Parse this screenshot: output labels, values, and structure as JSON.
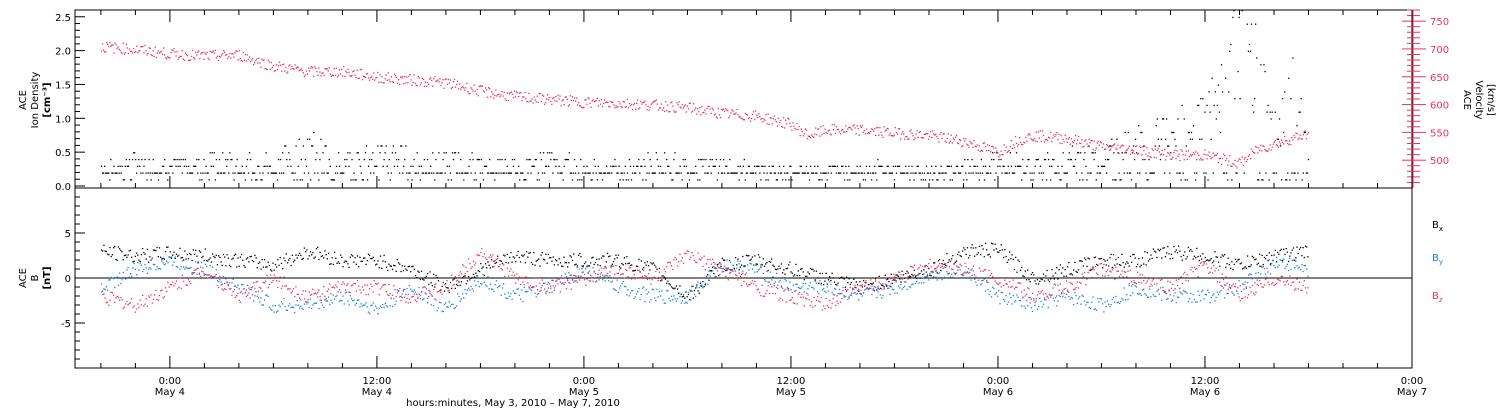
{
  "chart_data": [
    {
      "type": "scatter",
      "panel": "top",
      "ylabel_left": [
        "ACE",
        "Ion Density",
        "[cm⁻³]"
      ],
      "ylabel_right": [
        "ACE",
        "Velocity",
        "[km/s]"
      ],
      "ylim_left": [
        0,
        2.6
      ],
      "ylim_right": [
        450,
        770
      ],
      "yticks_left": [
        "0.0",
        "0.5",
        "1.0",
        "1.5",
        "2.0",
        "2.5"
      ],
      "yticks_right": [
        "500",
        "550",
        "600",
        "650",
        "700",
        "750"
      ],
      "series": [
        {
          "axis": "left",
          "color": "#000000",
          "x_hours": [
            -4,
            -2,
            0,
            2,
            4,
            6,
            8,
            10,
            12,
            14,
            16,
            18,
            20,
            22,
            24,
            26,
            28,
            30,
            32,
            34,
            36,
            38,
            40,
            42,
            44,
            46,
            48,
            50,
            52,
            54,
            56,
            58,
            60,
            61,
            62,
            63,
            64,
            65,
            66
          ],
          "y": [
            0.3,
            0.35,
            0.3,
            0.4,
            0.3,
            0.35,
            0.6,
            0.35,
            0.5,
            0.4,
            0.35,
            0.3,
            0.3,
            0.4,
            0.3,
            0.25,
            0.35,
            0.3,
            0.3,
            0.25,
            0.2,
            0.25,
            0.3,
            0.25,
            0.2,
            0.3,
            0.35,
            0.3,
            0.4,
            0.45,
            0.6,
            0.8,
            1.0,
            1.4,
            2.2,
            1.8,
            0.8,
            1.4,
            0.5
          ]
        },
        {
          "axis": "right",
          "color": "#e8335f",
          "x_hours": [
            -4,
            -2,
            0,
            2,
            4,
            6,
            8,
            10,
            12,
            14,
            16,
            18,
            20,
            22,
            24,
            26,
            28,
            30,
            32,
            34,
            36,
            37,
            38,
            40,
            42,
            44,
            46,
            48,
            49,
            50,
            52,
            54,
            56,
            58,
            60,
            62,
            63,
            64,
            66
          ],
          "y": [
            705,
            700,
            692,
            688,
            690,
            670,
            660,
            660,
            650,
            645,
            640,
            625,
            615,
            610,
            605,
            603,
            600,
            595,
            585,
            580,
            565,
            545,
            555,
            555,
            550,
            545,
            535,
            515,
            535,
            545,
            540,
            525,
            520,
            510,
            510,
            495,
            520,
            530,
            550
          ]
        }
      ]
    },
    {
      "type": "scatter",
      "panel": "bottom",
      "ylabel_left": [
        "ACE",
        "B",
        "[nT]"
      ],
      "ylim": [
        -10,
        10
      ],
      "yticks": [
        "-5",
        "0",
        "5"
      ],
      "legend_placement": "right",
      "series": [
        {
          "name": "Bx",
          "label_main": "B",
          "label_sub": "x",
          "color": "#000000",
          "x_hours": [
            -4,
            -2,
            0,
            2,
            4,
            6,
            8,
            10,
            12,
            14,
            16,
            18,
            20,
            22,
            24,
            26,
            28,
            30,
            32,
            34,
            36,
            38,
            40,
            42,
            44,
            46,
            48,
            50,
            52,
            54,
            56,
            58,
            60,
            62,
            64,
            66
          ],
          "y": [
            3,
            2.5,
            2.8,
            2.5,
            2,
            1.5,
            3,
            2,
            2,
            1,
            -1,
            1,
            2.5,
            2,
            2,
            2,
            1,
            -2,
            1.5,
            2,
            1,
            0,
            -1,
            0,
            1,
            3,
            3.2,
            0,
            1,
            2,
            2,
            3,
            2.5,
            1.5,
            2.5,
            3
          ]
        },
        {
          "name": "By",
          "label_main": "B",
          "label_sub": "y",
          "color": "#1a82e0",
          "x_hours": [
            -4,
            -2,
            0,
            2,
            4,
            6,
            8,
            10,
            12,
            14,
            16,
            18,
            20,
            22,
            24,
            26,
            28,
            30,
            32,
            34,
            36,
            38,
            40,
            42,
            44,
            46,
            48,
            50,
            52,
            54,
            56,
            58,
            60,
            62,
            64,
            66
          ],
          "y": [
            -1,
            1,
            2,
            1,
            -1,
            -3,
            -3,
            -2,
            -3.5,
            -1,
            -3.5,
            0,
            -2,
            -1,
            1,
            -1,
            -2,
            -2,
            1.5,
            1,
            -1,
            -1,
            -2,
            -1,
            0.5,
            1,
            -2,
            -3,
            -2,
            -3,
            -1,
            -2,
            -2,
            -1,
            2,
            1
          ]
        },
        {
          "name": "Bz",
          "label_main": "B",
          "label_sub": "z",
          "color": "#e8335f",
          "x_hours": [
            -4,
            -2,
            0,
            2,
            4,
            6,
            8,
            10,
            12,
            14,
            16,
            18,
            20,
            22,
            24,
            26,
            28,
            30,
            32,
            34,
            36,
            38,
            40,
            42,
            44,
            46,
            48,
            50,
            52,
            54,
            56,
            58,
            60,
            62,
            64,
            66
          ],
          "y": [
            -2,
            -3,
            -1,
            1,
            -2,
            0,
            -2,
            -1,
            -1,
            -2,
            -1,
            3,
            0,
            -1,
            0,
            1,
            0,
            2.5,
            1,
            -1,
            -2,
            -3,
            -1,
            0,
            1.5,
            1,
            0,
            -2,
            -1,
            1,
            0,
            -1,
            1.5,
            -2,
            0,
            -1
          ]
        }
      ]
    }
  ],
  "x_axis": {
    "xlim_hours": [
      -5.5,
      72
    ],
    "ticks": [
      {
        "hour": 0,
        "time": "0:00",
        "date": "May 4"
      },
      {
        "hour": 12,
        "time": "12:00",
        "date": "May 4"
      },
      {
        "hour": 24,
        "time": "0:00",
        "date": "May 5"
      },
      {
        "hour": 36,
        "time": "12:00",
        "date": "May 5"
      },
      {
        "hour": 48,
        "time": "0:00",
        "date": "May 6"
      },
      {
        "hour": 60,
        "time": "12:00",
        "date": "May 6"
      },
      {
        "hour": 72,
        "time": "0:00",
        "date": "May 7"
      }
    ],
    "label": "hours:minutes,  May  3, 2010  –  May  7, 2010"
  }
}
